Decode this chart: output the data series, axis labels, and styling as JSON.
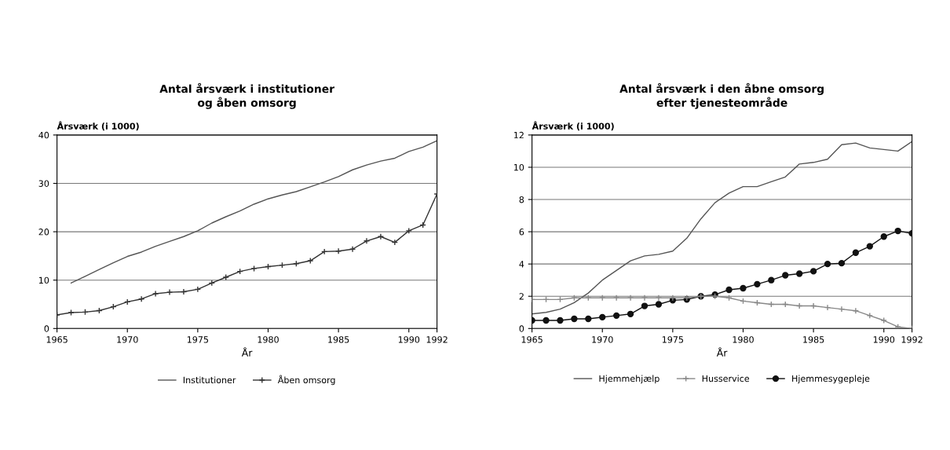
{
  "chart_data": [
    {
      "type": "line",
      "title": "Antal årsværk i institutioner\nog åben omsorg",
      "ylabel": "Årsværk (i 1000)",
      "xlabel": "År",
      "xlim": [
        1965,
        1992
      ],
      "xticks": [
        1965,
        1970,
        1975,
        1980,
        1985,
        1990,
        1992
      ],
      "ylim": [
        0,
        40
      ],
      "yticks": [
        0,
        10,
        20,
        30,
        40
      ],
      "grid": "y",
      "legend": "bottom",
      "series": [
        {
          "name": "Institutioner",
          "color": "#555555",
          "marker": "none",
          "x": [
            1966,
            1967,
            1968,
            1969,
            1970,
            1971,
            1972,
            1973,
            1974,
            1975,
            1976,
            1977,
            1978,
            1979,
            1980,
            1981,
            1982,
            1983,
            1984,
            1985,
            1986,
            1987,
            1988,
            1989,
            1990,
            1991,
            1992
          ],
          "values": [
            9.4,
            10.8,
            12.2,
            13.6,
            14.9,
            15.8,
            17,
            18,
            19,
            20.2,
            21.8,
            23.1,
            24.3,
            25.7,
            26.8,
            27.6,
            28.3,
            29.3,
            30.3,
            31.4,
            32.8,
            33.8,
            34.6,
            35.2,
            36.6,
            37.5,
            38.8
          ]
        },
        {
          "name": "Åben omsorg",
          "color": "#333333",
          "marker": "cross",
          "x": [
            1965,
            1966,
            1967,
            1968,
            1969,
            1970,
            1971,
            1972,
            1973,
            1974,
            1975,
            1976,
            1977,
            1978,
            1979,
            1980,
            1981,
            1982,
            1983,
            1984,
            1985,
            1986,
            1987,
            1988,
            1989,
            1990,
            1991,
            1992
          ],
          "values": [
            2.8,
            3.3,
            3.4,
            3.7,
            4.5,
            5.5,
            6.1,
            7.2,
            7.5,
            7.6,
            8.1,
            9.4,
            10.6,
            11.8,
            12.4,
            12.8,
            13.1,
            13.4,
            14,
            15.9,
            16,
            16.4,
            18.1,
            19,
            17.8,
            20.2,
            21.4,
            27.8
          ]
        }
      ]
    },
    {
      "type": "line",
      "title": "Antal årsværk i den åbne omsorg\nefter tjenesteområde",
      "ylabel": "Årsværk (i 1000)",
      "xlabel": "År",
      "xlim": [
        1965,
        1992
      ],
      "xticks": [
        1965,
        1970,
        1975,
        1980,
        1985,
        1990,
        1992
      ],
      "ylim": [
        0,
        12
      ],
      "yticks": [
        0,
        2,
        4,
        6,
        8,
        10,
        12
      ],
      "grid": "y",
      "legend": "bottom",
      "series": [
        {
          "name": "Hjemmehjælp",
          "color": "#555555",
          "marker": "none",
          "x": [
            1965,
            1966,
            1967,
            1968,
            1969,
            1970,
            1971,
            1972,
            1973,
            1974,
            1975,
            1976,
            1977,
            1978,
            1979,
            1980,
            1981,
            1982,
            1983,
            1984,
            1985,
            1986,
            1987,
            1988,
            1989,
            1990,
            1991,
            1992
          ],
          "values": [
            0.9,
            1.0,
            1.2,
            1.6,
            2.2,
            3.0,
            3.6,
            4.2,
            4.5,
            4.6,
            4.8,
            5.6,
            6.8,
            7.8,
            8.4,
            8.8,
            8.8,
            9.1,
            9.4,
            10.2,
            10.3,
            10.5,
            11.4,
            11.5,
            11.2,
            11.1,
            11.0,
            11.6
          ]
        },
        {
          "name": "Husservice",
          "color": "#888888",
          "marker": "cross",
          "x": [
            1965,
            1966,
            1967,
            1968,
            1969,
            1970,
            1971,
            1972,
            1973,
            1974,
            1975,
            1976,
            1977,
            1978,
            1979,
            1980,
            1981,
            1982,
            1983,
            1984,
            1985,
            1986,
            1987,
            1988,
            1989,
            1990,
            1991,
            1992
          ],
          "values": [
            1.8,
            1.8,
            1.8,
            1.9,
            1.9,
            1.9,
            1.9,
            1.9,
            1.9,
            1.9,
            1.9,
            1.9,
            2.0,
            2.0,
            1.9,
            1.7,
            1.6,
            1.5,
            1.5,
            1.4,
            1.4,
            1.3,
            1.2,
            1.1,
            0.8,
            0.5,
            0.1,
            0.0
          ]
        },
        {
          "name": "Hjemmesygepleje",
          "color": "#111111",
          "marker": "circle",
          "x": [
            1965,
            1966,
            1967,
            1968,
            1969,
            1970,
            1971,
            1972,
            1973,
            1974,
            1975,
            1976,
            1977,
            1978,
            1979,
            1980,
            1981,
            1982,
            1983,
            1984,
            1985,
            1986,
            1987,
            1988,
            1989,
            1990,
            1991,
            1992
          ],
          "values": [
            0.5,
            0.5,
            0.5,
            0.6,
            0.6,
            0.7,
            0.8,
            0.9,
            1.4,
            1.5,
            1.75,
            1.8,
            2.0,
            2.1,
            2.4,
            2.5,
            2.75,
            3.0,
            3.3,
            3.4,
            3.55,
            4.0,
            4.05,
            4.7,
            5.1,
            5.7,
            6.05,
            5.9
          ]
        }
      ]
    }
  ]
}
